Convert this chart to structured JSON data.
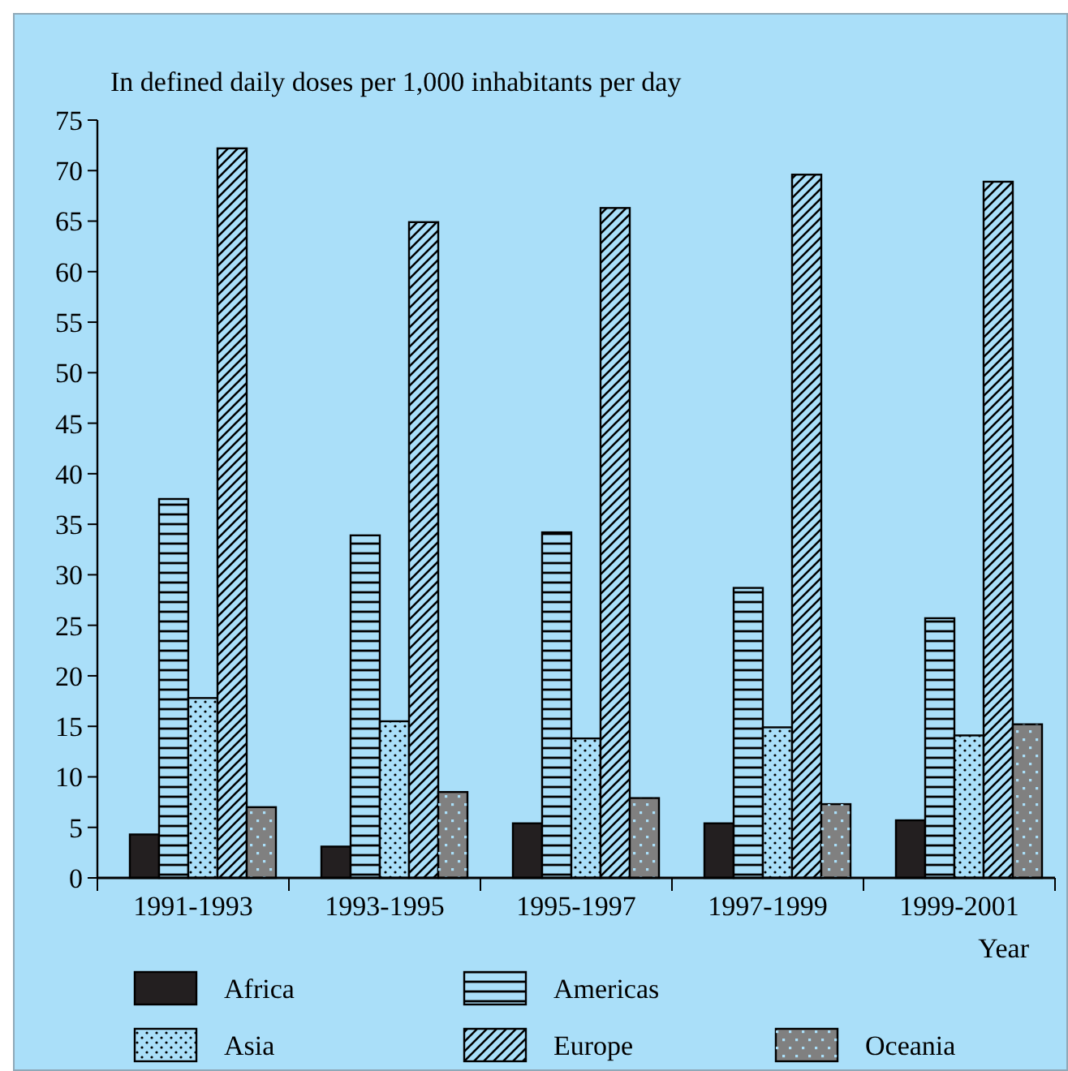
{
  "chart_data": {
    "type": "bar",
    "ylabel": "In defined daily doses per 1,000 inhabitants per day",
    "xlabel": "Year",
    "categories": [
      "1991-1993",
      "1993-1995",
      "1995-1997",
      "1997-1999",
      "1999-2001"
    ],
    "series": [
      {
        "name": "Africa",
        "color": "#231f20",
        "values": [
          4.3,
          3.1,
          5.4,
          5.4,
          5.7
        ]
      },
      {
        "name": "Americas",
        "color": "#aadff9",
        "values": [
          37.5,
          33.9,
          34.2,
          28.7,
          25.7
        ]
      },
      {
        "name": "Asia",
        "color": "#aadff9",
        "values": [
          17.8,
          15.5,
          13.8,
          14.9,
          14.1
        ]
      },
      {
        "name": "Europe",
        "color": "#aadff9",
        "values": [
          72.2,
          64.9,
          66.3,
          69.6,
          68.9
        ]
      },
      {
        "name": "Oceania",
        "color": "#808080",
        "values": [
          7.0,
          8.5,
          7.9,
          7.3,
          15.2
        ]
      }
    ],
    "ylim": [
      0,
      75
    ],
    "yticks": [
      0,
      5,
      10,
      15,
      20,
      25,
      30,
      35,
      40,
      45,
      50,
      55,
      60,
      65,
      70,
      75
    ],
    "grid": false,
    "legend": "bottom"
  }
}
